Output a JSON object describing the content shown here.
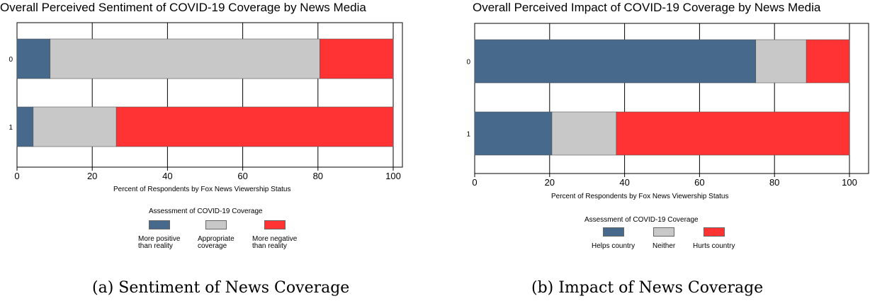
{
  "colors": {
    "blue": "#46698c",
    "gray": "#c8c8c8",
    "red": "#ff3333"
  },
  "chart_data": [
    {
      "type": "bar",
      "orientation": "horizontal-stacked",
      "title": "Overall Perceived Sentiment of COVID-19 Coverage by News Media",
      "xlabel": "Percent of Respondents by Fox News Viewership Status",
      "ylabel": "",
      "categories": [
        "0",
        "1"
      ],
      "xlim": [
        0,
        100
      ],
      "xticks": [
        "0",
        "20",
        "40",
        "60",
        "80",
        "100"
      ],
      "grid": true,
      "legend_title": "Assessment of COVID-19 Coverage",
      "legend_position": "bottom",
      "series": [
        {
          "name": "More positive\nthan reality",
          "color": "#46698c",
          "values": [
            8.8,
            4.3
          ]
        },
        {
          "name": "Appropriate\ncoverage",
          "color": "#c8c8c8",
          "values": [
            71.7,
            22.1
          ]
        },
        {
          "name": "More negative\nthan reality",
          "color": "#ff3333",
          "values": [
            19.5,
            73.6
          ]
        }
      ],
      "caption": "(a) Sentiment of News Coverage"
    },
    {
      "type": "bar",
      "orientation": "horizontal-stacked",
      "title": "Overall Perceived Impact of COVID-19 Coverage by News Media",
      "xlabel": "Percent of Respondents by Fox News Viewership Status",
      "ylabel": "",
      "categories": [
        "0",
        "1"
      ],
      "xlim": [
        0,
        100
      ],
      "xticks": [
        "0",
        "20",
        "40",
        "60",
        "80",
        "100"
      ],
      "grid": true,
      "legend_title": "Assessment of COVID-19 Coverage",
      "legend_position": "bottom",
      "series": [
        {
          "name": "Helps country",
          "color": "#46698c",
          "values": [
            75.0,
            20.6
          ]
        },
        {
          "name": "Neither",
          "color": "#c8c8c8",
          "values": [
            13.5,
            17.2
          ]
        },
        {
          "name": "Hurts country",
          "color": "#ff3333",
          "values": [
            11.5,
            62.2
          ]
        }
      ],
      "caption": "(b) Impact of News Coverage"
    }
  ]
}
